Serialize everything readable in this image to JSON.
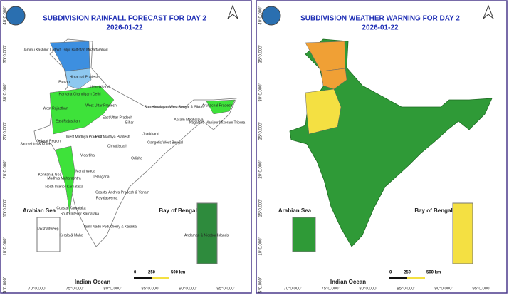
{
  "left_panel": {
    "title": "SUBDIVISION RAINFALL FORECAST FOR DAY 2",
    "date": "2026-01-22",
    "regions": [
      "Jammu Kashmir Ladakh Gilgit Baltistan Muzaffarabad",
      "Himachal Pradesh",
      "Punjab",
      "Uttarakhand",
      "Haryana Chandigarh Delhi",
      "West Uttar Pradesh",
      "West Rajasthan",
      "East Rajasthan",
      "East Uttar Pradesh",
      "Bihar",
      "Sub Himalayan West Bengal & Sikkim",
      "Arunachal Pradesh",
      "Assam Meghalaya",
      "Nagaland Manipur Mizoram Tripura",
      "Jharkhand",
      "Gangetic West Bengal",
      "West Madhya Pradesh",
      "East Madhya Pradesh",
      "Saurashtra & Kutch",
      "Gujarat Region",
      "Chhattisgarh",
      "Odisha",
      "Vidarbha",
      "Marathwada",
      "Konkan & Goa",
      "Madhya Maharashtra",
      "Telangana",
      "North Interior Karnataka",
      "Coastal Andhra Pradesh & Yanam",
      "Rayalaseema",
      "Coastal Karnataka",
      "South Interior Karnataka",
      "Tamil Nadu Puducherry & Karaikal",
      "Kerala & Mahe",
      "Lakshadweep",
      "Andaman & Nicobar Islands"
    ]
  },
  "right_panel": {
    "title": "SUBDIVISION WEATHER WARNING FOR DAY 2",
    "date": "2026-01-22"
  },
  "seas": [
    "Arabian Sea",
    "Bay of Bengal",
    "Indian Ocean"
  ],
  "scale": [
    "0",
    "250",
    "500 km"
  ],
  "lat_labels": [
    "40°0.000'",
    "35°0.000'",
    "30°0.000'",
    "25°0.000'",
    "20°0.000'",
    "15°0.000'",
    "10°0.000'",
    "5°0.000'"
  ],
  "lon_labels": [
    "70°0.000'",
    "75°0.000'",
    "80°0.000'",
    "85°0.000'",
    "90°0.000'",
    "95°0.000'"
  ]
}
